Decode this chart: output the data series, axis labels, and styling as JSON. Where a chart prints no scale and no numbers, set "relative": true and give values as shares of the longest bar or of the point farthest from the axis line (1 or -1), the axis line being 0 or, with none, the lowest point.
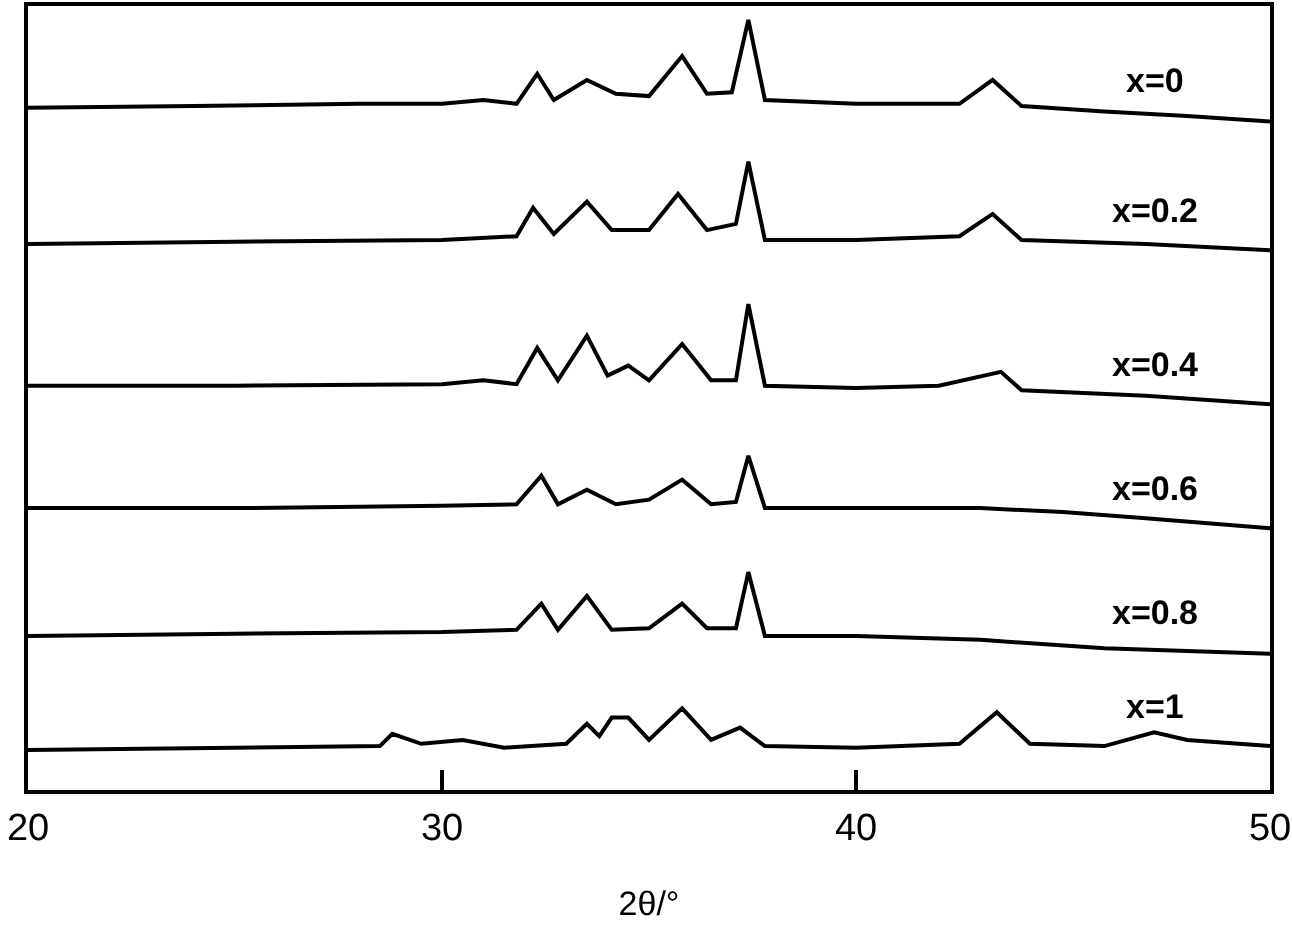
{
  "chart_data": {
    "type": "line",
    "xlabel": "2θ/°",
    "relative": true,
    "xlim": [
      20,
      50
    ],
    "xticks": [
      20,
      30,
      40,
      50
    ],
    "grid": false,
    "legend": false,
    "series": [
      {
        "name": "x=0",
        "color": "#000000",
        "x": [
          20,
          24,
          28,
          30,
          31,
          31.8,
          32.3,
          32.7,
          33.5,
          34.2,
          35,
          35.8,
          36.4,
          37.0,
          37.4,
          37.8,
          40,
          42.5,
          43.3,
          44,
          46,
          48,
          50
        ],
        "values": [
          0.886,
          0.888,
          0.891,
          0.891,
          0.896,
          0.891,
          0.93,
          0.896,
          0.922,
          0.904,
          0.901,
          0.953,
          0.904,
          0.906,
          1.0,
          0.896,
          0.891,
          0.891,
          0.922,
          0.888,
          0.881,
          0.875,
          0.868
        ]
      },
      {
        "name": "x=0.2",
        "color": "#000000",
        "x": [
          20,
          25,
          30,
          31.8,
          32.2,
          32.7,
          33.5,
          34.1,
          35,
          35.7,
          36.4,
          37.1,
          37.4,
          37.8,
          40,
          42.5,
          43.3,
          44,
          47,
          50
        ],
        "values": [
          0.709,
          0.712,
          0.714,
          0.719,
          0.756,
          0.722,
          0.764,
          0.727,
          0.727,
          0.774,
          0.727,
          0.735,
          0.816,
          0.714,
          0.714,
          0.719,
          0.748,
          0.714,
          0.709,
          0.701
        ]
      },
      {
        "name": "x=0.4",
        "color": "#000000",
        "x": [
          20,
          25,
          30,
          31,
          31.8,
          32.3,
          32.8,
          33.5,
          34.0,
          34.5,
          35,
          35.8,
          36.5,
          37.1,
          37.4,
          37.8,
          40,
          42,
          43.5,
          44,
          47,
          50
        ],
        "values": [
          0.525,
          0.525,
          0.527,
          0.532,
          0.527,
          0.574,
          0.532,
          0.59,
          0.538,
          0.551,
          0.532,
          0.579,
          0.532,
          0.532,
          0.631,
          0.525,
          0.522,
          0.525,
          0.543,
          0.519,
          0.512,
          0.501
        ]
      },
      {
        "name": "x=0.6",
        "color": "#000000",
        "x": [
          20,
          25,
          30,
          31.8,
          32.4,
          32.8,
          33.5,
          34.2,
          35,
          35.8,
          36.5,
          37.1,
          37.4,
          37.8,
          40,
          43,
          45,
          47,
          50
        ],
        "values": [
          0.366,
          0.366,
          0.369,
          0.371,
          0.408,
          0.371,
          0.39,
          0.371,
          0.377,
          0.403,
          0.371,
          0.374,
          0.434,
          0.366,
          0.366,
          0.366,
          0.361,
          0.353,
          0.34
        ]
      },
      {
        "name": "x=0.8",
        "color": "#000000",
        "x": [
          20,
          25,
          30,
          31.8,
          32.4,
          32.8,
          33.5,
          34.1,
          35,
          35.8,
          36.4,
          37.1,
          37.4,
          37.8,
          40,
          43,
          46,
          50
        ],
        "values": [
          0.2,
          0.203,
          0.205,
          0.208,
          0.242,
          0.208,
          0.252,
          0.208,
          0.21,
          0.242,
          0.21,
          0.21,
          0.283,
          0.2,
          0.2,
          0.195,
          0.184,
          0.177
        ]
      },
      {
        "name": "x=1",
        "color": "#000000",
        "x": [
          20,
          25,
          28.5,
          28.8,
          29.5,
          30.5,
          31.5,
          33,
          33.5,
          33.8,
          34.1,
          34.5,
          35,
          35.8,
          36.5,
          37.2,
          37.8,
          40,
          42.5,
          43.4,
          44.2,
          46,
          47.2,
          48,
          50
        ],
        "values": [
          0.052,
          0.055,
          0.057,
          0.073,
          0.06,
          0.065,
          0.055,
          0.06,
          0.086,
          0.07,
          0.094,
          0.094,
          0.065,
          0.106,
          0.065,
          0.081,
          0.057,
          0.055,
          0.06,
          0.101,
          0.06,
          0.057,
          0.075,
          0.065,
          0.057
        ]
      }
    ]
  }
}
